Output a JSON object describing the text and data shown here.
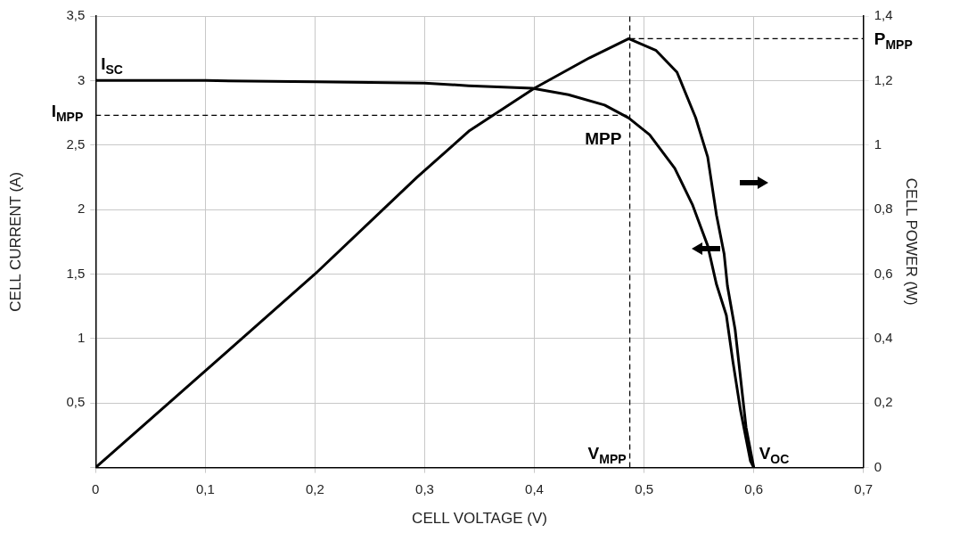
{
  "chart_data": {
    "type": "line",
    "xlabel": "CELL VOLTAGE (V)",
    "ylabel": "CELL CURRENT (A)",
    "y2label": "CELL POWER (W)",
    "xlim": [
      0,
      0.7
    ],
    "xticks": [
      0,
      {
        "value": 0.1,
        "label": "0,1"
      },
      {
        "value": 0.2,
        "label": "0,2"
      },
      {
        "value": 0.3,
        "label": "0,3"
      },
      {
        "value": 0.4,
        "label": "0,4"
      },
      {
        "value": 0.5,
        "label": "0,5"
      },
      {
        "value": 0.6,
        "label": "0,6"
      },
      {
        "value": 0.7,
        "label": "0,7"
      }
    ],
    "ylim": [
      0,
      3.5
    ],
    "yticks": [
      {
        "value": 0,
        "label": null
      },
      {
        "value": 0.5,
        "label": "0,5"
      },
      1,
      {
        "value": 1.5,
        "label": "1,5"
      },
      2,
      {
        "value": 2.5,
        "label": "2,5"
      },
      3,
      {
        "value": 3.5,
        "label": "3,5"
      }
    ],
    "y2lim": [
      0,
      1.4
    ],
    "y2ticks": [
      0,
      {
        "value": 0.2,
        "label": "0,2"
      },
      {
        "value": 0.4,
        "label": "0,4"
      },
      {
        "value": 0.6,
        "label": "0,6"
      },
      {
        "value": 0.8,
        "label": "0,8"
      },
      1,
      {
        "value": 1.2,
        "label": "1,2"
      },
      {
        "value": 1.4,
        "label": "1,4"
      }
    ],
    "grid": true,
    "legend": false,
    "marker": "none",
    "line_style": "solid",
    "series": [
      {
        "color": "#000000",
        "x": [
          0,
          0.1,
          0.2,
          0.3,
          0.34,
          0.398,
          0.431,
          0.464,
          0.486,
          0.505,
          0.528,
          0.544,
          0.558,
          0.566,
          0.575,
          0.581,
          0.588,
          0.597,
          0.6
        ],
        "values": [
          3.0,
          3.0,
          2.99,
          2.98,
          2.96,
          2.94,
          2.89,
          2.81,
          2.71,
          2.58,
          2.32,
          2.04,
          1.72,
          1.42,
          1.18,
          0.82,
          0.44,
          0.05,
          0
        ]
      },
      {
        "color": "#000000",
        "axis": "y2",
        "x": [
          0,
          0.1,
          0.2,
          0.293,
          0.341,
          0.4,
          0.45,
          0.486,
          0.511,
          0.53,
          0.547,
          0.558,
          0.566,
          0.573,
          0.576,
          0.583,
          0.588,
          0.593,
          0.6
        ],
        "values": [
          0,
          0.3,
          0.6,
          0.9,
          1.045,
          1.176,
          1.27,
          1.33,
          1.293,
          1.226,
          1.085,
          0.963,
          0.783,
          0.662,
          0.563,
          0.428,
          0.276,
          0.124,
          0
        ]
      }
    ],
    "ref_lines": [
      {
        "axis": "x",
        "value": 0.487,
        "label": "V$_{MPP}$",
        "line_style": "dashed"
      },
      {
        "axis": "y",
        "value": 2.73,
        "label": "I$_{MPP}$",
        "line_style": "dashed"
      },
      {
        "axis": "y2",
        "value": 1.33,
        "label": "P$_{MPP}$",
        "line_style": "dashed"
      }
    ],
    "annotations": [
      {
        "text": "I$_{SC}$",
        "x": 0,
        "y": 3
      },
      {
        "text": "MPP",
        "x": 0.486,
        "y": 2.71
      },
      {
        "text": "V$_{OC}$",
        "x": 0.6,
        "y": 0
      }
    ]
  }
}
